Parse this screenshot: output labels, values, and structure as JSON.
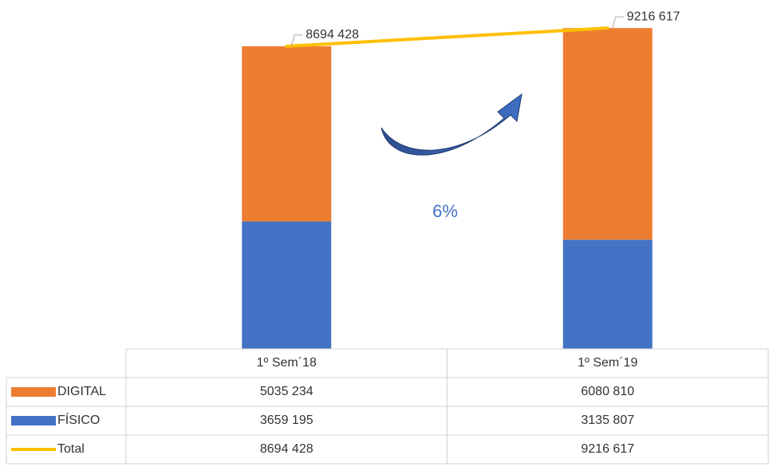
{
  "chart_data": {
    "type": "bar",
    "categories": [
      "1º Sem´18",
      "1º Sem´19"
    ],
    "series": [
      {
        "name": "DIGITAL",
        "color": "#ed7d31",
        "values": [
          5035234,
          6080810
        ],
        "value_labels": [
          "5035 234",
          "6080 810"
        ]
      },
      {
        "name": "FÍSICO",
        "color": "#4472c4",
        "values": [
          3659195,
          3135807
        ],
        "value_labels": [
          "3659 195",
          "3135 807"
        ]
      },
      {
        "name": "Total",
        "type": "line",
        "color": "#ffc000",
        "values": [
          8694428,
          9216617
        ],
        "value_labels": [
          "8694 428",
          "9216 617"
        ]
      }
    ],
    "stacked": true,
    "ylim": [
      0,
      10000000
    ],
    "annotation": "6%"
  }
}
